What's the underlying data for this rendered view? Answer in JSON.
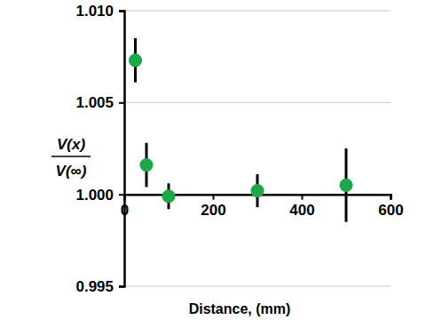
{
  "chart_data": {
    "type": "scatter",
    "xlabel": "Distance, (mm)",
    "ylabel": [
      "V(x)",
      "V(∞)"
    ],
    "x": [
      25,
      50,
      100,
      300,
      500
    ],
    "values": [
      1.0073,
      1.0016,
      0.9999,
      1.0002,
      1.0005
    ],
    "errors": [
      0.0012,
      0.0012,
      0.0007,
      0.0009,
      0.002
    ],
    "color": "#1ea84a",
    "marker": "circle",
    "xlim": [
      0,
      600
    ],
    "xticks": [
      0,
      200,
      400,
      600
    ],
    "ylim": [
      0.995,
      1.01
    ],
    "yticks": [
      0.995,
      {
        "value": 1,
        "label": "1.000"
      },
      1.005,
      {
        "value": 1.01,
        "label": "1.010"
      }
    ],
    "grid": true
  }
}
